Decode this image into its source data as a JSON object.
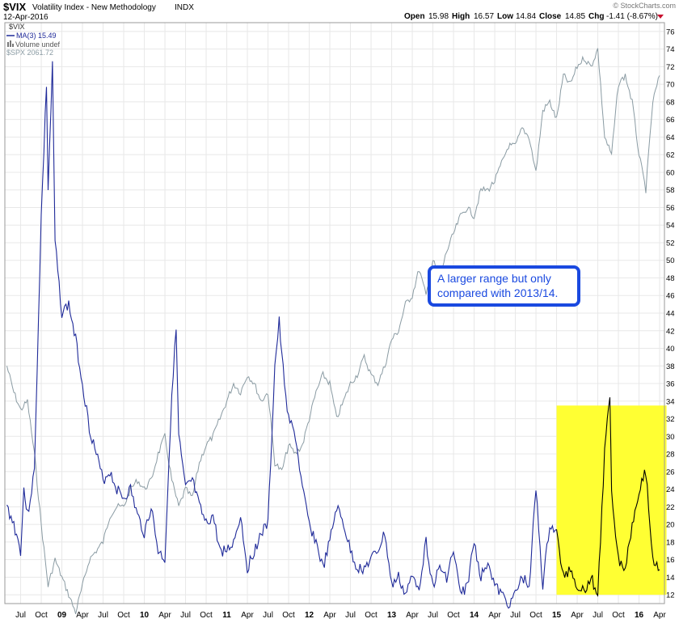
{
  "header": {
    "symbol": "$VIX",
    "name": "Volatility Index - New Methodology",
    "exchange": "INDX",
    "date": "12-Apr-2016",
    "watermark": "© StockCharts.com",
    "open_label": "Open",
    "open_value": "15.98",
    "high_label": "High",
    "high_value": "16.57",
    "low_label": "Low",
    "low_value": "14.84",
    "close_label": "Close",
    "close_value": "14.85",
    "chg_label": "Chg",
    "chg_value": "-1.41 (-8.67%)"
  },
  "legend": {
    "items": [
      "$VIX",
      "MA(3) 15.49",
      "Volume undef",
      "$SPX 2061.72"
    ]
  },
  "annotation": {
    "line1": "A larger range but only",
    "line2": "compared with 2013/14."
  },
  "colors": {
    "vix": "#1f2a99",
    "vix_highlight": "#000000",
    "spx": "#8a9ba3",
    "highlight": "#ffff33",
    "callout_border": "#1a49e0",
    "grid": "#e8e8e8"
  },
  "chart_data": {
    "type": "line",
    "x_unit": "date (yyyy-mm)",
    "x_tick_labels": [
      "Jul",
      "Oct",
      "09",
      "Apr",
      "Jul",
      "Oct",
      "10",
      "Apr",
      "Jul",
      "Oct",
      "11",
      "Apr",
      "Jul",
      "Oct",
      "12",
      "Apr",
      "Jul",
      "Oct",
      "13",
      "Apr",
      "Jul",
      "Oct",
      "14",
      "Apr",
      "Jul",
      "Oct",
      "15",
      "Apr",
      "Jul",
      "Oct",
      "16",
      "Apr"
    ],
    "y_ticks": [
      12,
      14,
      16,
      18,
      20,
      22,
      24,
      26,
      28,
      30,
      32,
      34,
      36,
      38,
      40,
      42,
      44,
      46,
      48,
      50,
      52,
      54,
      56,
      58,
      60,
      62,
      64,
      66,
      68,
      70,
      72,
      74,
      76
    ],
    "ylim": [
      11,
      77
    ],
    "y_axis_side": "right",
    "grid": true,
    "highlight_region": {
      "x_start": "2015-01",
      "x_end": "2016-05",
      "y_range": [
        12,
        33.5
      ]
    },
    "series": [
      {
        "name": "$VIX",
        "points": [
          [
            "2008-05",
            22
          ],
          [
            "2008-06",
            20
          ],
          [
            "2008-07",
            17
          ],
          [
            "2008-07-15",
            24
          ],
          [
            "2008-08",
            21
          ],
          [
            "2008-09",
            26
          ],
          [
            "2008-10",
            55
          ],
          [
            "2008-10-24",
            70
          ],
          [
            "2008-11",
            58
          ],
          [
            "2008-11-20",
            72
          ],
          [
            "2008-12",
            52
          ],
          [
            "2009-01",
            44
          ],
          [
            "2009-02",
            45
          ],
          [
            "2009-03",
            41
          ],
          [
            "2009-04",
            36
          ],
          [
            "2009-05",
            31
          ],
          [
            "2009-06",
            28
          ],
          [
            "2009-07",
            25
          ],
          [
            "2009-08",
            26
          ],
          [
            "2009-09",
            24
          ],
          [
            "2009-10",
            23
          ],
          [
            "2009-11",
            24
          ],
          [
            "2009-12",
            21
          ],
          [
            "2010-01",
            19
          ],
          [
            "2010-02",
            22
          ],
          [
            "2010-03",
            17
          ],
          [
            "2010-04",
            16
          ],
          [
            "2010-05",
            35
          ],
          [
            "2010-05-20",
            42
          ],
          [
            "2010-06",
            30
          ],
          [
            "2010-07",
            24
          ],
          [
            "2010-08",
            25
          ],
          [
            "2010-09",
            22
          ],
          [
            "2010-10",
            20
          ],
          [
            "2010-11",
            21
          ],
          [
            "2010-12",
            17
          ],
          [
            "2011-01",
            17
          ],
          [
            "2011-02",
            18
          ],
          [
            "2011-03",
            21
          ],
          [
            "2011-04",
            15
          ],
          [
            "2011-05",
            17
          ],
          [
            "2011-06",
            19
          ],
          [
            "2011-07",
            20
          ],
          [
            "2011-08",
            38
          ],
          [
            "2011-08-20",
            43
          ],
          [
            "2011-09",
            39
          ],
          [
            "2011-10",
            32
          ],
          [
            "2011-11",
            30
          ],
          [
            "2011-12",
            24
          ],
          [
            "2012-01",
            20
          ],
          [
            "2012-02",
            18
          ],
          [
            "2012-03",
            15
          ],
          [
            "2012-04",
            18
          ],
          [
            "2012-05",
            22
          ],
          [
            "2012-06",
            20
          ],
          [
            "2012-07",
            17
          ],
          [
            "2012-08",
            15
          ],
          [
            "2012-09",
            15
          ],
          [
            "2012-10",
            16
          ],
          [
            "2012-11",
            17
          ],
          [
            "2012-12",
            19
          ],
          [
            "2013-01",
            13
          ],
          [
            "2013-02",
            14
          ],
          [
            "2013-03",
            12
          ],
          [
            "2013-04",
            14
          ],
          [
            "2013-05",
            13
          ],
          [
            "2013-06",
            18
          ],
          [
            "2013-07",
            13
          ],
          [
            "2013-08",
            15
          ],
          [
            "2013-09",
            14
          ],
          [
            "2013-10",
            17
          ],
          [
            "2013-11",
            12
          ],
          [
            "2013-12",
            13
          ],
          [
            "2014-01",
            18
          ],
          [
            "2014-02",
            14
          ],
          [
            "2014-03",
            16
          ],
          [
            "2014-04",
            13
          ],
          [
            "2014-05",
            12
          ],
          [
            "2014-06",
            11
          ],
          [
            "2014-07",
            12
          ],
          [
            "2014-08",
            14
          ],
          [
            "2014-09",
            13
          ],
          [
            "2014-10",
            24
          ],
          [
            "2014-11",
            13
          ],
          [
            "2014-12",
            20
          ],
          [
            "2015-01",
            19
          ],
          [
            "2015-02",
            14
          ],
          [
            "2015-03",
            15
          ],
          [
            "2015-04",
            13
          ],
          [
            "2015-05",
            12.5
          ],
          [
            "2015-06",
            14
          ],
          [
            "2015-07",
            12
          ],
          [
            "2015-08",
            28
          ],
          [
            "2015-08-24",
            35
          ],
          [
            "2015-09",
            24
          ],
          [
            "2015-10",
            16
          ],
          [
            "2015-11",
            15
          ],
          [
            "2015-12",
            20
          ],
          [
            "2016-01",
            24
          ],
          [
            "2016-02",
            26
          ],
          [
            "2016-03",
            16
          ],
          [
            "2016-04",
            14.85
          ]
        ]
      },
      {
        "name": "$SPX",
        "points": [
          [
            "2008-05",
            38
          ],
          [
            "2008-06",
            35
          ],
          [
            "2008-07",
            33
          ],
          [
            "2008-08",
            34
          ],
          [
            "2008-09",
            28
          ],
          [
            "2008-10",
            20
          ],
          [
            "2008-11",
            13
          ],
          [
            "2008-12",
            16
          ],
          [
            "2009-01",
            14
          ],
          [
            "2009-02",
            12
          ],
          [
            "2009-03",
            10
          ],
          [
            "2009-04",
            13
          ],
          [
            "2009-05",
            16
          ],
          [
            "2009-06",
            17
          ],
          [
            "2009-07",
            18
          ],
          [
            "2009-08",
            21
          ],
          [
            "2009-09",
            22
          ],
          [
            "2009-10",
            22
          ],
          [
            "2009-11",
            24
          ],
          [
            "2009-12",
            25
          ],
          [
            "2010-01",
            24
          ],
          [
            "2010-02",
            25
          ],
          [
            "2010-03",
            28
          ],
          [
            "2010-04",
            30
          ],
          [
            "2010-05",
            25
          ],
          [
            "2010-06",
            22
          ],
          [
            "2010-07",
            24
          ],
          [
            "2010-08",
            23
          ],
          [
            "2010-09",
            27
          ],
          [
            "2010-10",
            29
          ],
          [
            "2010-11",
            30
          ],
          [
            "2010-12",
            32
          ],
          [
            "2011-01",
            34
          ],
          [
            "2011-02",
            36
          ],
          [
            "2011-03",
            35
          ],
          [
            "2011-04",
            37
          ],
          [
            "2011-05",
            36
          ],
          [
            "2011-06",
            34
          ],
          [
            "2011-07",
            35
          ],
          [
            "2011-08",
            27
          ],
          [
            "2011-09",
            26
          ],
          [
            "2011-10",
            29
          ],
          [
            "2011-11",
            28
          ],
          [
            "2011-12",
            29
          ],
          [
            "2012-01",
            32
          ],
          [
            "2012-02",
            35
          ],
          [
            "2012-03",
            37
          ],
          [
            "2012-04",
            36
          ],
          [
            "2012-05",
            32
          ],
          [
            "2012-06",
            34
          ],
          [
            "2012-07",
            36
          ],
          [
            "2012-08",
            37
          ],
          [
            "2012-09",
            39
          ],
          [
            "2012-10",
            37
          ],
          [
            "2012-11",
            36
          ],
          [
            "2012-12",
            38
          ],
          [
            "2013-01",
            41
          ],
          [
            "2013-02",
            42
          ],
          [
            "2013-03",
            45
          ],
          [
            "2013-04",
            46
          ],
          [
            "2013-05",
            49
          ],
          [
            "2013-06",
            46
          ],
          [
            "2013-07",
            50
          ],
          [
            "2013-08",
            48
          ],
          [
            "2013-09",
            51
          ],
          [
            "2013-10",
            53
          ],
          [
            "2013-11",
            55
          ],
          [
            "2013-12",
            56
          ],
          [
            "2014-01",
            55
          ],
          [
            "2014-02",
            58
          ],
          [
            "2014-03",
            58
          ],
          [
            "2014-04",
            59
          ],
          [
            "2014-05",
            61
          ],
          [
            "2014-06",
            63
          ],
          [
            "2014-07",
            63
          ],
          [
            "2014-08",
            65
          ],
          [
            "2014-09",
            64
          ],
          [
            "2014-10",
            60
          ],
          [
            "2014-11",
            67
          ],
          [
            "2014-12",
            68
          ],
          [
            "2015-01",
            66
          ],
          [
            "2015-02",
            71
          ],
          [
            "2015-03",
            70
          ],
          [
            "2015-04",
            72
          ],
          [
            "2015-05",
            73
          ],
          [
            "2015-06",
            72
          ],
          [
            "2015-07",
            74
          ],
          [
            "2015-08",
            64
          ],
          [
            "2015-09",
            62
          ],
          [
            "2015-10",
            70
          ],
          [
            "2015-11",
            71
          ],
          [
            "2015-12",
            68
          ],
          [
            "2016-01",
            62
          ],
          [
            "2016-02",
            58
          ],
          [
            "2016-03",
            68
          ],
          [
            "2016-04",
            71
          ]
        ]
      }
    ]
  }
}
